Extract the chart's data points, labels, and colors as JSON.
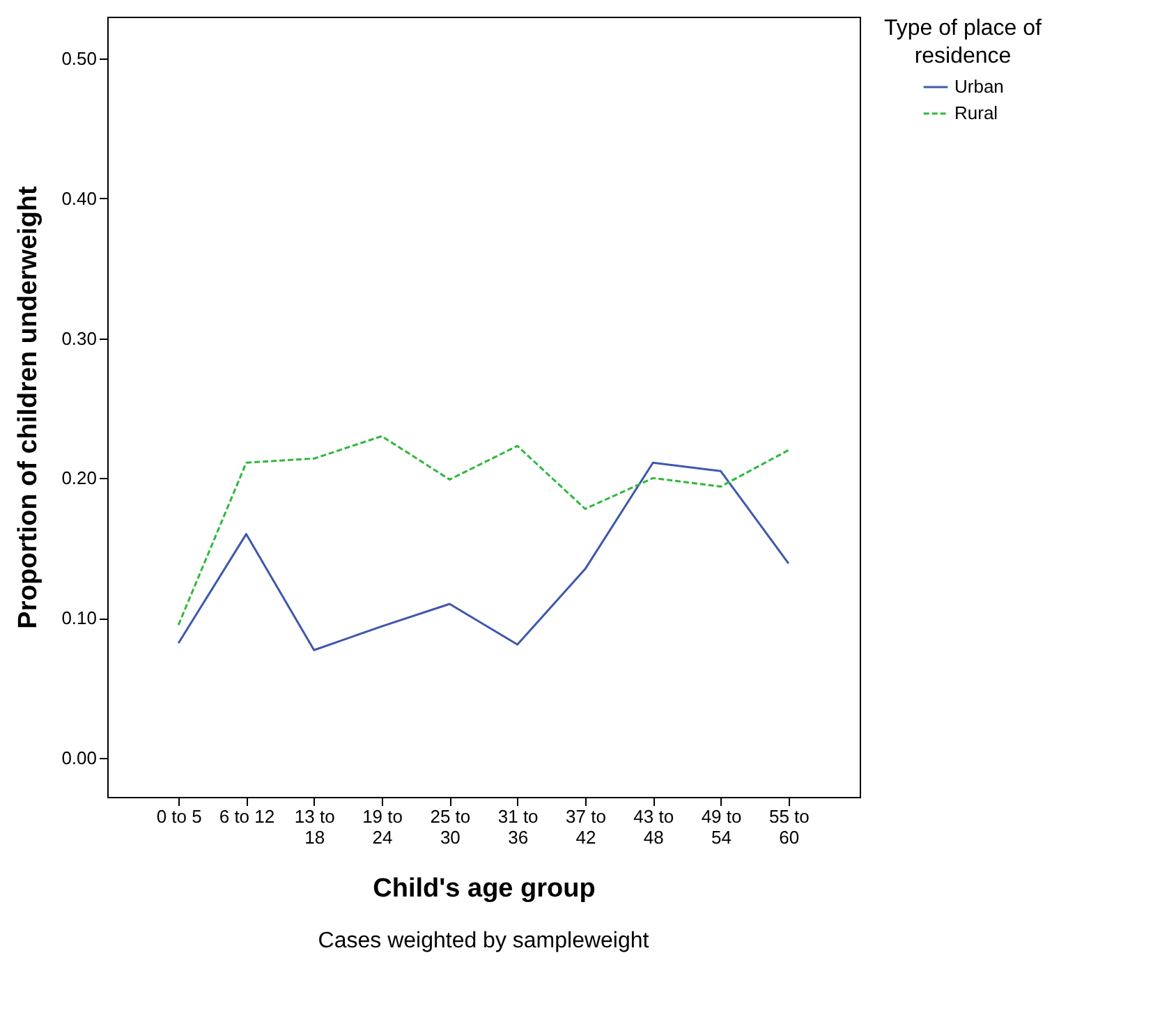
{
  "chart_data": {
    "type": "line",
    "xlabel": "Child's age group",
    "ylabel": "Proportion of children underweight",
    "legend_title": "Type of place of residence",
    "legend": "top right",
    "grid": false,
    "marker": "none",
    "categories": [
      "0 to 5",
      "6 to 12",
      "13 to 18",
      "19 to 24",
      "25 to 30",
      "31 to 36",
      "37 to 42",
      "43 to 48",
      "49 to 54",
      "55 to 60"
    ],
    "ylim": [
      -0.028,
      0.53
    ],
    "yticks": [
      {
        "value": 0,
        "label": "0.00"
      },
      {
        "value": 0.1,
        "label": "0.10"
      },
      {
        "value": 0.2,
        "label": "0.20"
      },
      {
        "value": 0.3,
        "label": "0.30"
      },
      {
        "value": 0.4,
        "label": "0.40"
      },
      {
        "value": 0.5,
        "label": "0.50"
      }
    ],
    "series": [
      {
        "name": "Urban",
        "color": "#3e58ac",
        "line_style": "solid",
        "values": [
          0.082,
          0.16,
          0.077,
          0.094,
          0.11,
          0.081,
          0.135,
          0.211,
          0.205,
          0.139
        ]
      },
      {
        "name": "Rural",
        "color": "#2fb83c",
        "line_style": "dashed",
        "values": [
          0.095,
          0.211,
          0.214,
          0.23,
          0.199,
          0.223,
          0.178,
          0.2,
          0.194,
          0.22
        ]
      }
    ],
    "annotations": [
      "Cases weighted by sampleweight"
    ]
  }
}
